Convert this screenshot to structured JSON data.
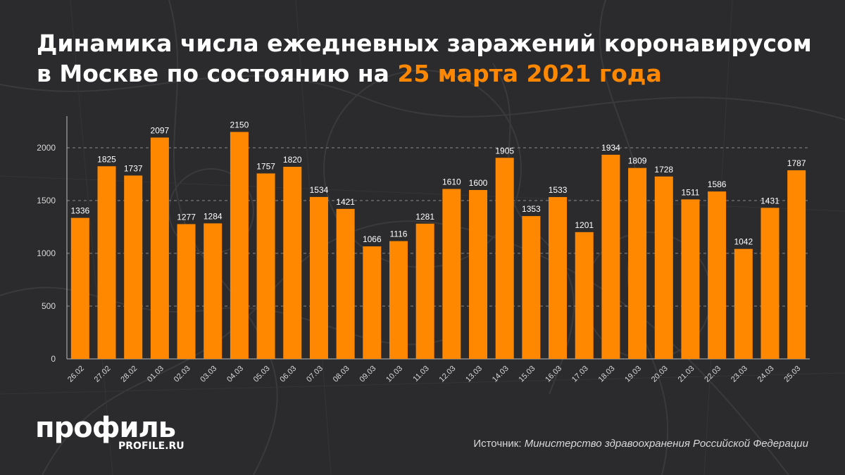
{
  "title": {
    "line1": "Динамика числа ежедневных заражений коронавирусом",
    "line2_prefix": "в Москве по состоянию на ",
    "line2_highlight": "25 марта 2021 года"
  },
  "colors": {
    "bar": "#ff8800",
    "background": "#2b2b2d",
    "highlight": "#ff8800"
  },
  "chart_data": {
    "type": "bar",
    "title": "",
    "xlabel": "",
    "ylabel": "",
    "ylim": [
      0,
      2300
    ],
    "yticks": [
      0,
      500,
      1000,
      1500,
      2000
    ],
    "grid": true,
    "categories": [
      "26.02",
      "27.02",
      "28.02",
      "01.03",
      "02.03",
      "03.03",
      "04.03",
      "05.03",
      "06.03",
      "07.03",
      "08.03",
      "09.03",
      "10.03",
      "11.03",
      "12.03",
      "13.03",
      "14.03",
      "15.03",
      "16.03",
      "17.03",
      "18.03",
      "19.03",
      "20.03",
      "21.03",
      "22.03",
      "23.03",
      "24.03",
      "25.03"
    ],
    "values": [
      1336,
      1825,
      1737,
      2097,
      1277,
      1284,
      2150,
      1757,
      1820,
      1534,
      1421,
      1066,
      1116,
      1281,
      1610,
      1600,
      1905,
      1353,
      1533,
      1201,
      1934,
      1809,
      1728,
      1511,
      1586,
      1042,
      1431,
      1787
    ]
  },
  "brand": {
    "name": "профиль",
    "url": "PROFILE.RU"
  },
  "source": {
    "label": "Источник: ",
    "value": "Министерство здравоохранения Российской Федерации"
  }
}
